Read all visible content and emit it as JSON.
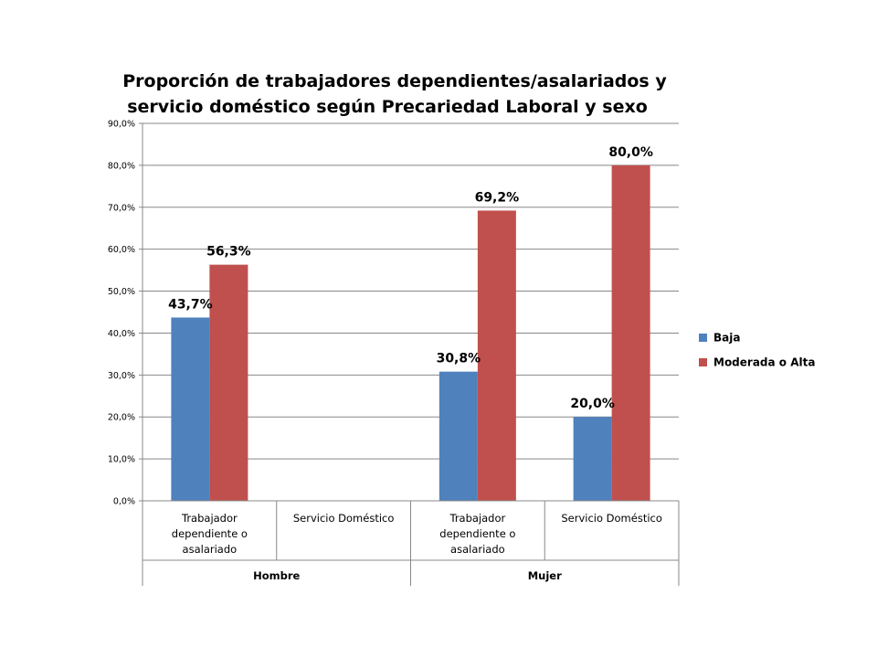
{
  "chart_data": {
    "type": "bar",
    "title_lines": [
      "Proporción de trabajadores dependientes/asalariados y",
      "servicio doméstico según Precariedad Laboral y sexo"
    ],
    "groups": [
      {
        "label": "Hombre",
        "categories": [
          "Trabajador dependiente o asalariado",
          "Servicio Doméstico"
        ]
      },
      {
        "label": "Mujer",
        "categories": [
          "Trabajador dependiente o asalariado",
          "Servicio Doméstico"
        ]
      }
    ],
    "category_lines": [
      [
        "Trabajador",
        "dependiente o",
        "asalariado"
      ],
      [
        "Servicio Doméstico"
      ],
      [
        "Trabajador",
        "dependiente o",
        "asalariado"
      ],
      [
        "Servicio Doméstico"
      ]
    ],
    "series": [
      {
        "name": "Baja",
        "color": "#4F81BD",
        "values": [
          43.7,
          null,
          30.8,
          20.0
        ],
        "labels": [
          "43,7%",
          "",
          "30,8%",
          "20,0%"
        ]
      },
      {
        "name": "Moderada o Alta",
        "color": "#C0504D",
        "values": [
          56.3,
          null,
          69.2,
          80.0
        ],
        "labels": [
          "56,3%",
          "",
          "69,2%",
          "80,0%"
        ]
      }
    ],
    "ylim": [
      0,
      90
    ],
    "yticks": [
      0,
      10,
      20,
      30,
      40,
      50,
      60,
      70,
      80,
      90
    ],
    "ytick_labels": [
      "0,0%",
      "10,0%",
      "20,0%",
      "30,0%",
      "40,0%",
      "50,0%",
      "60,0%",
      "70,0%",
      "80,0%",
      "90,0%"
    ],
    "grid": true,
    "legend_position": "right"
  }
}
